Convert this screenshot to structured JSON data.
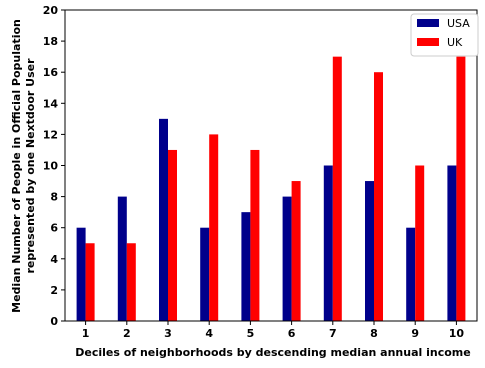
{
  "chart_data": {
    "type": "bar",
    "xlabel": "Deciles of neighborhoods by descending median annual income",
    "ylabel_lines": [
      "Median Number of People in Official Population",
      "represented by one Nextdoor User"
    ],
    "categories": [
      "1",
      "2",
      "3",
      "4",
      "5",
      "6",
      "7",
      "8",
      "9",
      "10"
    ],
    "series": [
      {
        "name": "USA",
        "color": "#00008b",
        "values": [
          6,
          8,
          13,
          6,
          7,
          8,
          10,
          9,
          6,
          10
        ]
      },
      {
        "name": "UK",
        "color": "#ff0000",
        "values": [
          5,
          5,
          11,
          12,
          11,
          9,
          17,
          16,
          10,
          17
        ]
      }
    ],
    "ylim": [
      0,
      20
    ],
    "yticks": [
      "0",
      "2",
      "4",
      "6",
      "8",
      "10",
      "12",
      "14",
      "16",
      "18",
      "20"
    ],
    "grid": false,
    "legend_position": "top-right"
  }
}
